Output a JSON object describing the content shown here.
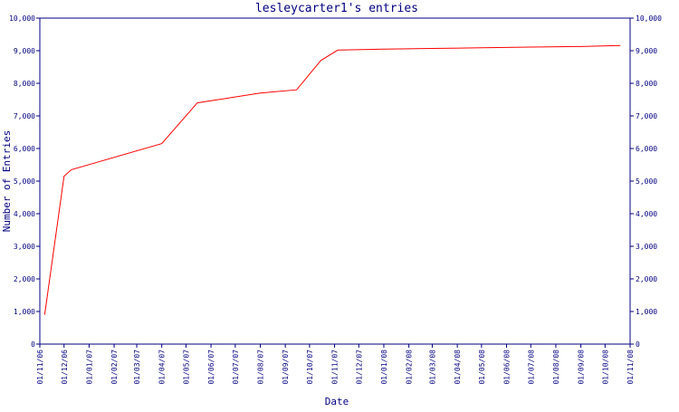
{
  "chart_data": {
    "type": "line",
    "title": "lesleycarter1's entries",
    "xlabel": "Date",
    "ylabel": "Number of Entries",
    "ylim": [
      0,
      10000
    ],
    "y_ticks": [
      0,
      1000,
      2000,
      3000,
      4000,
      5000,
      6000,
      7000,
      8000,
      9000,
      10000
    ],
    "y_tick_labels": [
      "0",
      "1,000",
      "2,000",
      "3,000",
      "4,000",
      "5,000",
      "6,000",
      "7,000",
      "8,000",
      "9,000",
      "10,000"
    ],
    "x_ticks": [
      "01/11/06",
      "01/12/06",
      "01/01/07",
      "01/02/07",
      "01/03/07",
      "01/04/07",
      "01/05/07",
      "01/06/07",
      "01/07/07",
      "01/08/07",
      "01/09/07",
      "01/10/07",
      "01/11/07",
      "01/12/07",
      "01/01/08",
      "01/02/08",
      "01/03/08",
      "01/04/08",
      "01/05/08",
      "01/06/08",
      "01/07/08",
      "01/08/08",
      "01/09/08",
      "01/10/08",
      "01/11/08"
    ],
    "grid": false,
    "line_color": "#ff0000",
    "axis_color": "#000080",
    "series": [
      {
        "x": [
          "2006-11-07",
          "2006-12-01",
          "2006-12-10",
          "2007-04-01",
          "2007-05-15",
          "2007-08-01",
          "2007-09-15",
          "2007-10-15",
          "2007-11-05",
          "2008-01-01",
          "2008-03-01",
          "2008-05-01",
          "2008-07-01",
          "2008-09-01",
          "2008-10-20"
        ],
        "y": [
          900,
          5150,
          5350,
          6150,
          7400,
          7700,
          7800,
          8700,
          9020,
          9050,
          9070,
          9090,
          9110,
          9130,
          9160
        ]
      }
    ]
  }
}
